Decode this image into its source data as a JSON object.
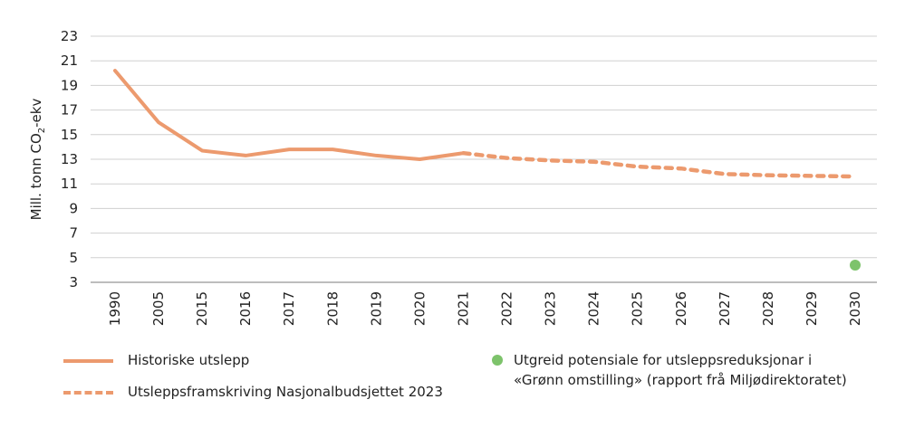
{
  "chart_data": {
    "type": "line",
    "ylabel": "Mill. tonn CO₂-ekv",
    "ylabel_main": "Mill. tonn CO",
    "ylabel_sub": "2",
    "ylabel_tail": "-ekv",
    "ylim": [
      3,
      23
    ],
    "yticks": [
      3,
      5,
      7,
      9,
      11,
      13,
      15,
      17,
      19,
      21,
      23
    ],
    "grid": true,
    "categories": [
      "1990",
      "2005",
      "2015",
      "2016",
      "2017",
      "2018",
      "2019",
      "2020",
      "2021",
      "2022",
      "2023",
      "2024",
      "2025",
      "2026",
      "2027",
      "2028",
      "2029",
      "2030"
    ],
    "series": [
      {
        "name": "Historiske utslepp",
        "style": "solid",
        "color": "#ec9a6e",
        "points": {
          "1990": 20.2,
          "2005": 16.0,
          "2015": 13.7,
          "2016": 13.3,
          "2017": 13.8,
          "2018": 13.8,
          "2019": 13.3,
          "2020": 13.0,
          "2021": 13.5
        }
      },
      {
        "name": "Utsleppsframskriving Nasjonalbudsjettet 2023",
        "style": "dashed",
        "color": "#ec9a6e",
        "points": {
          "2021": 13.5,
          "2022": 13.1,
          "2023": 12.9,
          "2024": 12.8,
          "2025": 12.4,
          "2026": 12.25,
          "2027": 11.8,
          "2028": 11.7,
          "2029": 11.65,
          "2030": 11.6
        }
      },
      {
        "name": "Utgreid potensiale for utsleppsreduksjonar i «Grønn omstilling» (rapport frå Miljødirektoratet)",
        "style": "point",
        "color": "#7dc36b",
        "points": {
          "2030": 4.4
        }
      }
    ],
    "legend_position": "bottom"
  },
  "legend": {
    "historic": "Historiske utslepp",
    "projection": "Utsleppsframskriving Nasjonalbudsjettet 2023",
    "potential_line1": "Utgreid potensiale for utsleppsreduksjonar i",
    "potential_line2": "«Grønn omstilling» (rapport frå Miljødirektoratet)"
  }
}
